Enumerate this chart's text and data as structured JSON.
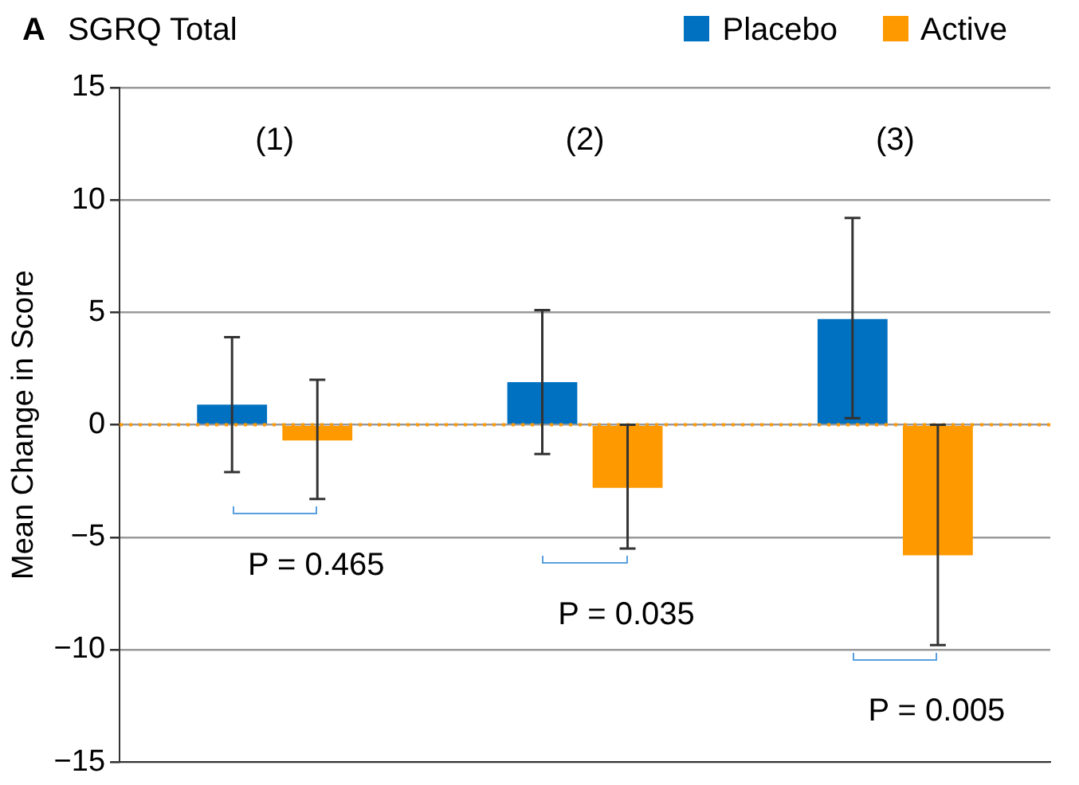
{
  "chart_data": {
    "type": "bar",
    "title": "SGRQ Total",
    "ylabel": "Mean Change in Score",
    "categories": [
      "(1)",
      "(2)",
      "(3)"
    ],
    "series": [
      {
        "name": "Placebo",
        "color": "#0070c0",
        "values": [
          0.9,
          1.9,
          4.7
        ],
        "errors": [
          [
            -2.1,
            3.9
          ],
          [
            -1.3,
            5.1
          ],
          [
            0.3,
            9.2
          ]
        ]
      },
      {
        "name": "Active",
        "color": "#ff9900",
        "values": [
          -0.7,
          -2.8,
          -5.8
        ],
        "errors": [
          [
            -3.3,
            2.0
          ],
          [
            -5.5,
            0
          ],
          [
            -9.8,
            0
          ]
        ]
      }
    ],
    "ylim": [
      -15,
      15
    ],
    "yticks": [
      {
        "value": -15,
        "label": "−15"
      },
      {
        "value": -10,
        "label": "−10"
      },
      {
        "value": -5,
        "label": "−5"
      },
      0,
      5,
      10,
      15
    ],
    "grid": "y",
    "legend": "top right",
    "ref_lines": [
      {
        "axis": "y",
        "value": 0,
        "color": "#ff9900",
        "line_style": "dotted"
      }
    ],
    "annotations": [
      "A",
      "P = 0.465",
      "P = 0.035",
      "P = 0.005"
    ]
  }
}
